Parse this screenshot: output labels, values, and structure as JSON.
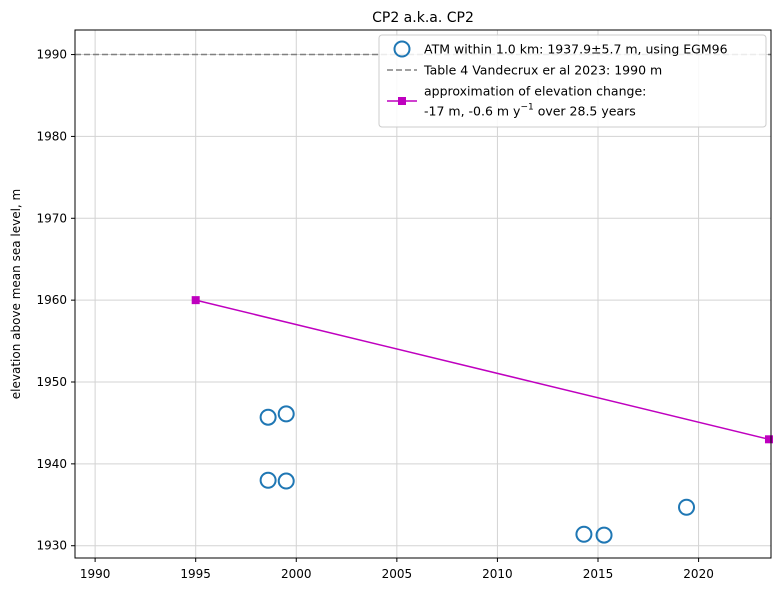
{
  "chart_data": {
    "type": "line",
    "title": "CP2 a.k.a. CP2",
    "xlabel": "",
    "ylabel": "elevation above mean sea level, m",
    "xlim": [
      1989,
      2023.6
    ],
    "ylim": [
      1928.5,
      1993
    ],
    "xticks": [
      1990,
      1995,
      2000,
      2005,
      2010,
      2015,
      2020
    ],
    "yticks": [
      1930,
      1940,
      1950,
      1960,
      1970,
      1980,
      1990
    ],
    "grid": true,
    "legend_position": "top-right",
    "series": [
      {
        "name": "ATM within 1.0 km: 1937.9±5.7 m, using EGM96",
        "kind": "scatter",
        "color": "#1f77b4",
        "marker": "open-circle",
        "points": [
          {
            "x": 1998.6,
            "y": 1945.7
          },
          {
            "x": 1999.5,
            "y": 1946.1
          },
          {
            "x": 1998.6,
            "y": 1938.0
          },
          {
            "x": 1999.5,
            "y": 1937.9
          },
          {
            "x": 2014.3,
            "y": 1931.4
          },
          {
            "x": 2015.3,
            "y": 1931.3
          },
          {
            "x": 2019.4,
            "y": 1934.7
          }
        ]
      },
      {
        "name": "Table 4 Vandecrux er al 2023: 1990 m",
        "kind": "hline",
        "color": "#808080",
        "style": "dashed",
        "y": 1990
      },
      {
        "name_line1": "approximation of elevation change:",
        "name_line2_prefix": "-17 m, -0.6 m y",
        "name_line2_sup": "−1",
        "name_line2_suffix": " over 28.5 years",
        "kind": "line",
        "color": "#bf00bf",
        "marker": "square",
        "points": [
          {
            "x": 1995.0,
            "y": 1960.0
          },
          {
            "x": 2023.5,
            "y": 1943.0
          }
        ]
      }
    ]
  }
}
